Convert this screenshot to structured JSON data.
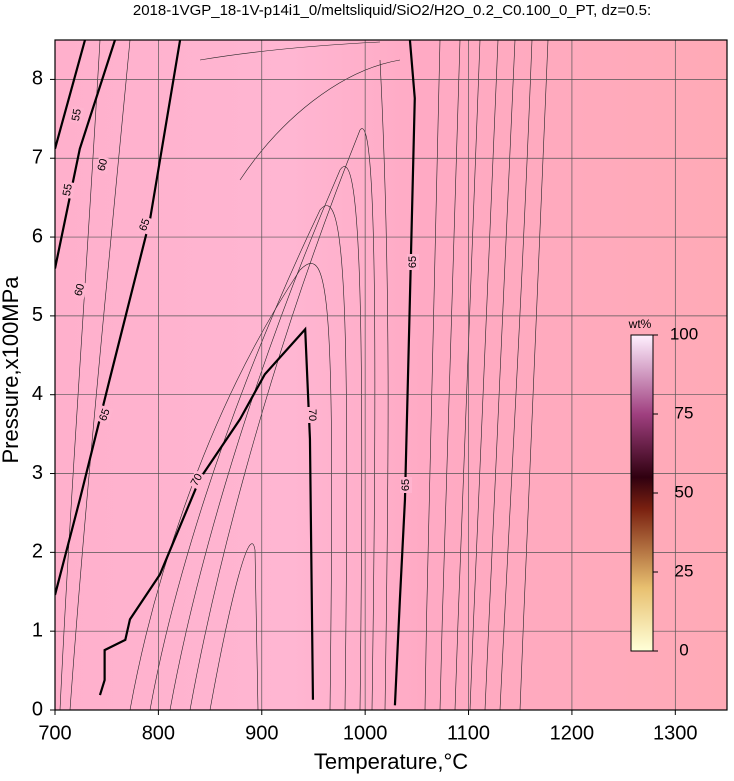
{
  "chart_data": {
    "type": "contour",
    "title": "2018-1VGP_18-1V-p14i1_0/meltsliquid/SiO2/H2O_0.2_C0.100_0_PT, dz=0.5:",
    "xlabel": "Temperature,°C",
    "ylabel": "Pressure,x100MPa",
    "xlim": [
      700,
      1350
    ],
    "ylim": [
      0,
      8.5
    ],
    "xticks": [
      700,
      800,
      900,
      1000,
      1100,
      1200,
      1300
    ],
    "yticks": [
      0,
      1,
      2,
      3,
      4,
      5,
      6,
      7,
      8
    ],
    "grid": true,
    "series": [
      {
        "level": 70,
        "color": "#000000",
        "x": [
          743.5,
          748,
          748,
          768,
          772.5,
          801.5,
          840,
          879,
          903,
          942,
          946.6,
          949.5
        ],
        "y": [
          0.19,
          0.38,
          0.76,
          0.89,
          1.15,
          1.72,
          2.93,
          3.69,
          4.26,
          4.83,
          3.44,
          0.13
        ]
      },
      {
        "level": 65,
        "color": "#000000",
        "x": [
          1028.8,
          1033.6,
          1038.5,
          1043.3,
          1048,
          1043.3
        ],
        "y": [
          0.06,
          1.4,
          2.67,
          5.22,
          7.76,
          8.5
        ]
      },
      {
        "level": 65,
        "color": "#000000",
        "x": [
          700,
          724,
          753,
          792,
          821
        ],
        "y": [
          1.46,
          2.67,
          4.2,
          6.23,
          8.5
        ]
      },
      {
        "level": 60,
        "color": "#000000",
        "x": [
          700,
          724,
          758
        ],
        "y": [
          5.6,
          7.12,
          8.5
        ]
      },
      {
        "level": 55,
        "color": "#000000",
        "x": [
          700,
          729
        ],
        "y": [
          7.12,
          8.5
        ]
      }
    ],
    "colorbar": {
      "label": "wt%",
      "lim": [
        0,
        100
      ],
      "ticks": [
        0,
        25,
        50,
        75,
        100
      ]
    }
  }
}
